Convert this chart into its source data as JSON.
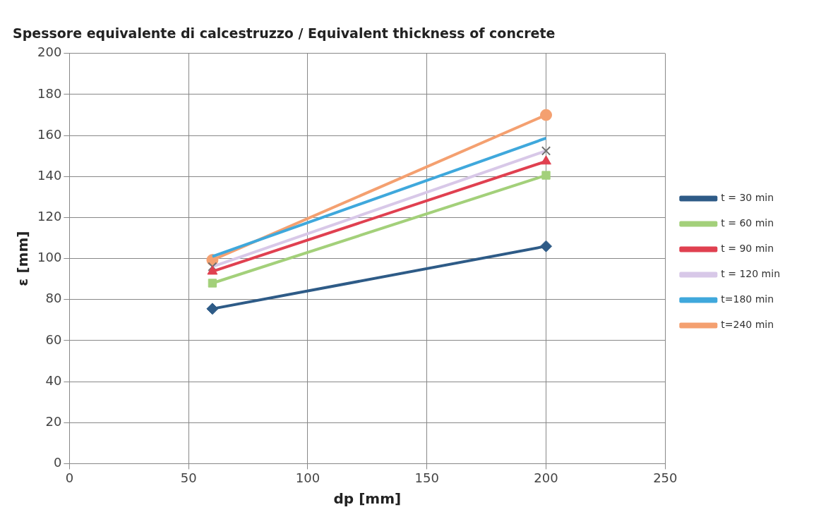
{
  "chart_data": {
    "type": "line",
    "title": "Spessore equivalente di calcestruzzo / Equivalent thickness of concrete",
    "xlabel": "dp [mm]",
    "ylabel": "ε [mm]",
    "x": [
      60,
      200
    ],
    "series": [
      {
        "name": "t = 30 min",
        "color": "#2e5b87",
        "marker": "diamond",
        "values": [
          75.5,
          106
        ]
      },
      {
        "name": "t = 60 min",
        "color": "#a3d07a",
        "marker": "square",
        "values": [
          88,
          140.6
        ]
      },
      {
        "name": "t = 90 min",
        "color": "#e04050",
        "marker": "triangle",
        "values": [
          93.7,
          147.4
        ]
      },
      {
        "name": "t = 120 min",
        "color": "#d8c8e8",
        "marker": "cross",
        "values": [
          96,
          152.5
        ]
      },
      {
        "name": "t=180 min",
        "color": "#3fa8dc",
        "marker": "none",
        "values": [
          101,
          158.7
        ]
      },
      {
        "name": "t=240 min",
        "color": "#f4a070",
        "marker": "circle",
        "values": [
          99.3,
          170
        ]
      }
    ],
    "xlim": [
      0,
      250
    ],
    "xticks": [
      0,
      50,
      100,
      150,
      200,
      250
    ],
    "ylim": [
      0,
      200
    ],
    "yticks": [
      0,
      20,
      40,
      60,
      80,
      100,
      120,
      140,
      160,
      180,
      200
    ],
    "grid": true,
    "legend": "right"
  }
}
